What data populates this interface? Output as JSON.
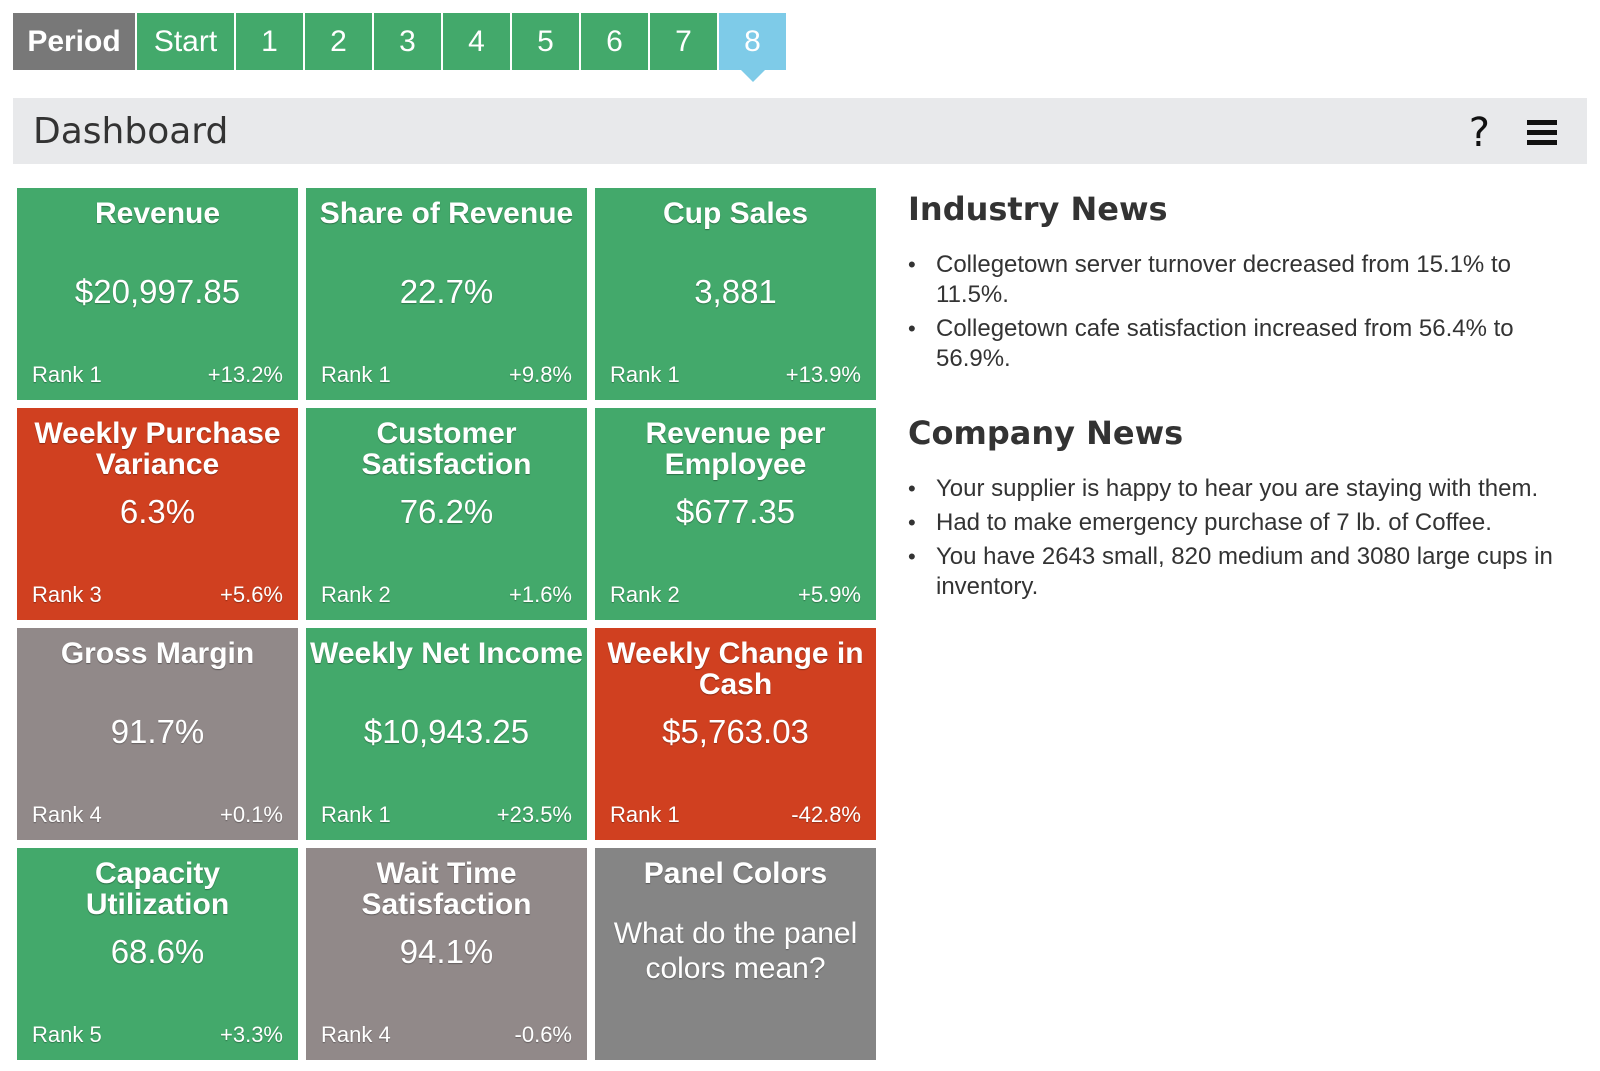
{
  "period_bar": {
    "label": "Period",
    "tabs": [
      {
        "label": "Start"
      },
      {
        "label": "1"
      },
      {
        "label": "2"
      },
      {
        "label": "3"
      },
      {
        "label": "4"
      },
      {
        "label": "5"
      },
      {
        "label": "6"
      },
      {
        "label": "7"
      },
      {
        "label": "8",
        "active": true
      }
    ]
  },
  "header": {
    "title": "Dashboard",
    "help_icon": "?"
  },
  "colors": {
    "green": "#43a96b",
    "red": "#d04020",
    "gray": "#918989",
    "dark_gray": "#858585",
    "active_tab": "#7ecbe8"
  },
  "panels": [
    {
      "title": "Revenue",
      "value": "$20,997.85",
      "rank": "Rank 1",
      "change": "+13.2%",
      "color": "green"
    },
    {
      "title": "Share of Revenue",
      "value": "22.7%",
      "rank": "Rank 1",
      "change": "+9.8%",
      "color": "green"
    },
    {
      "title": "Cup Sales",
      "value": "3,881",
      "rank": "Rank 1",
      "change": "+13.9%",
      "color": "green"
    },
    {
      "title": "Weekly Purchase Variance",
      "value": "6.3%",
      "rank": "Rank 3",
      "change": "+5.6%",
      "color": "red"
    },
    {
      "title": "Customer Satisfaction",
      "value": "76.2%",
      "rank": "Rank 2",
      "change": "+1.6%",
      "color": "green"
    },
    {
      "title": "Revenue per Employee",
      "value": "$677.35",
      "rank": "Rank 2",
      "change": "+5.9%",
      "color": "green"
    },
    {
      "title": "Gross Margin",
      "value": "91.7%",
      "rank": "Rank 4",
      "change": "+0.1%",
      "color": "gray"
    },
    {
      "title": "Weekly Net Income",
      "value": "$10,943.25",
      "rank": "Rank 1",
      "change": "+23.5%",
      "color": "green"
    },
    {
      "title": "Weekly Change in Cash",
      "value": "$5,763.03",
      "rank": "Rank 1",
      "change": "-42.8%",
      "color": "red"
    },
    {
      "title": "Capacity Utilization",
      "value": "68.6%",
      "rank": "Rank 5",
      "change": "+3.3%",
      "color": "green"
    },
    {
      "title": "Wait Time Satisfaction",
      "value": "94.1%",
      "rank": "Rank 4",
      "change": "-0.6%",
      "color": "gray"
    },
    {
      "title": "Panel Colors",
      "question": "What do the panel colors mean?",
      "color": "dark_gray"
    }
  ],
  "industry_news": {
    "heading": "Industry News",
    "items": [
      "Collegetown server turnover decreased from 15.1% to 11.5%.",
      "Collegetown cafe satisfaction increased from 56.4% to 56.9%."
    ]
  },
  "company_news": {
    "heading": "Company News",
    "items": [
      "Your supplier is happy to hear you are staying with them.",
      "Had to make emergency purchase of 7 lb. of Coffee.",
      "You have 2643 small, 820 medium and 3080 large cups in inventory."
    ]
  }
}
